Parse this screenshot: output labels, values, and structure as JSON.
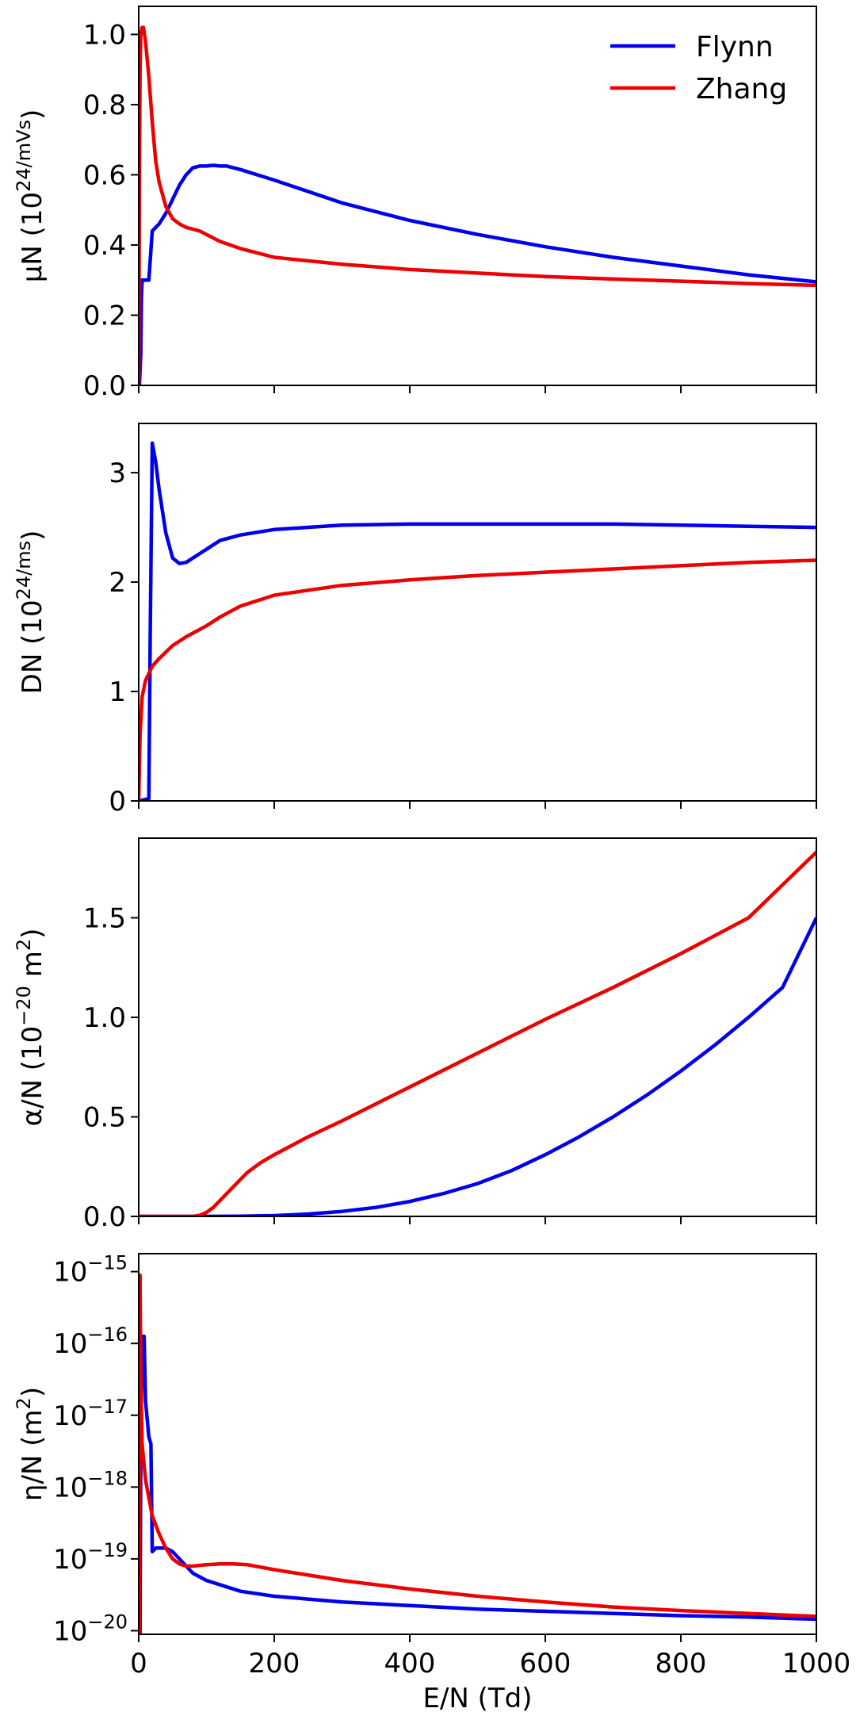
{
  "chart_data": [
    {
      "type": "line",
      "panel": "mobility",
      "ylabel": "μN (10^24/mVs)",
      "xlim": [
        0,
        1000
      ],
      "ylim": [
        0,
        1.08
      ],
      "yticks": [
        "0.0",
        "0.2",
        "0.4",
        "0.6",
        "0.8",
        "1.0"
      ],
      "ytick_values": [
        0,
        0.2,
        0.4,
        0.6,
        0.8,
        1.0
      ],
      "legend": {
        "position": "top-right",
        "entries": [
          "Flynn",
          "Zhang"
        ]
      },
      "series": [
        {
          "name": "Flynn",
          "color": "#0000ee",
          "x": [
            1,
            3,
            4,
            5,
            8,
            10,
            15,
            20,
            25,
            30,
            40,
            50,
            60,
            70,
            80,
            90,
            100,
            110,
            120,
            130,
            150,
            200,
            300,
            400,
            500,
            600,
            700,
            800,
            900,
            1000
          ],
          "y": [
            0.0,
            0.09,
            0.25,
            0.3,
            0.3,
            0.3,
            0.3,
            0.44,
            0.45,
            0.46,
            0.49,
            0.53,
            0.57,
            0.6,
            0.62,
            0.625,
            0.625,
            0.627,
            0.625,
            0.625,
            0.615,
            0.585,
            0.52,
            0.47,
            0.43,
            0.395,
            0.365,
            0.34,
            0.315,
            0.295
          ]
        },
        {
          "name": "Zhang",
          "color": "#ee0000",
          "x": [
            0,
            1,
            2,
            3,
            5,
            7,
            10,
            15,
            20,
            25,
            30,
            40,
            50,
            60,
            70,
            80,
            90,
            100,
            120,
            150,
            200,
            300,
            400,
            500,
            600,
            700,
            800,
            900,
            1000
          ],
          "y": [
            0.0,
            0.6,
            0.9,
            1.0,
            1.02,
            1.02,
            0.98,
            0.88,
            0.75,
            0.64,
            0.58,
            0.51,
            0.475,
            0.46,
            0.45,
            0.445,
            0.44,
            0.43,
            0.41,
            0.39,
            0.365,
            0.345,
            0.33,
            0.32,
            0.31,
            0.303,
            0.297,
            0.29,
            0.285
          ]
        }
      ]
    },
    {
      "type": "line",
      "panel": "diffusion",
      "ylabel": "DN (10^24/ms)",
      "xlim": [
        0,
        1000
      ],
      "ylim": [
        0,
        3.45
      ],
      "yticks": [
        "0",
        "1",
        "2",
        "3"
      ],
      "ytick_values": [
        0,
        1,
        2,
        3
      ],
      "series": [
        {
          "name": "Flynn",
          "color": "#0000ee",
          "x": [
            0,
            15,
            17,
            20,
            25,
            30,
            40,
            50,
            60,
            70,
            80,
            100,
            120,
            150,
            200,
            300,
            400,
            500,
            600,
            700,
            800,
            900,
            1000
          ],
          "y": [
            0.0,
            0.02,
            1.5,
            3.27,
            3.1,
            2.85,
            2.45,
            2.22,
            2.17,
            2.18,
            2.22,
            2.3,
            2.38,
            2.43,
            2.48,
            2.52,
            2.53,
            2.53,
            2.53,
            2.53,
            2.52,
            2.51,
            2.5
          ]
        },
        {
          "name": "Zhang",
          "color": "#ee0000",
          "x": [
            0,
            2,
            5,
            10,
            20,
            30,
            50,
            70,
            100,
            120,
            150,
            200,
            300,
            400,
            500,
            600,
            700,
            800,
            900,
            1000
          ],
          "y": [
            0.0,
            0.6,
            0.95,
            1.1,
            1.23,
            1.3,
            1.42,
            1.5,
            1.6,
            1.68,
            1.78,
            1.88,
            1.97,
            2.02,
            2.06,
            2.09,
            2.12,
            2.15,
            2.18,
            2.2
          ]
        }
      ]
    },
    {
      "type": "line",
      "panel": "ionization",
      "ylabel": "α/N (10^−20 m^2)",
      "xlim": [
        0,
        1000
      ],
      "ylim": [
        0,
        1.9
      ],
      "yticks": [
        "0.0",
        "0.5",
        "1.0",
        "1.5"
      ],
      "ytick_values": [
        0,
        0.5,
        1.0,
        1.5
      ],
      "series": [
        {
          "name": "Flynn",
          "color": "#0000ee",
          "x": [
            0,
            100,
            150,
            200,
            250,
            300,
            350,
            400,
            450,
            500,
            550,
            600,
            650,
            700,
            750,
            800,
            850,
            900,
            950,
            1000
          ],
          "y": [
            0.0,
            0.0,
            0.001,
            0.004,
            0.012,
            0.025,
            0.045,
            0.075,
            0.115,
            0.165,
            0.23,
            0.31,
            0.4,
            0.5,
            0.61,
            0.73,
            0.86,
            1.0,
            1.15,
            1.5
          ]
        },
        {
          "name": "Zhang",
          "color": "#ee0000",
          "x": [
            0,
            80,
            90,
            100,
            110,
            120,
            140,
            160,
            180,
            200,
            250,
            300,
            400,
            500,
            600,
            700,
            800,
            900,
            1000
          ],
          "y": [
            0.0,
            0.0,
            0.005,
            0.02,
            0.045,
            0.08,
            0.15,
            0.22,
            0.27,
            0.31,
            0.4,
            0.48,
            0.65,
            0.82,
            0.99,
            1.15,
            1.32,
            1.5,
            1.83
          ]
        }
      ]
    },
    {
      "type": "line",
      "panel": "attachment",
      "ylabel": "η/N (m^2)",
      "xlabel": "E/N (Td)",
      "xlim": [
        0,
        1000
      ],
      "yscale": "log",
      "ylim_exp": [
        -20.05,
        -14.75
      ],
      "yticks": [
        "10^-20",
        "10^-19",
        "10^-18",
        "10^-17",
        "10^-16",
        "10^-15"
      ],
      "ytick_exponents": [
        -20,
        -19,
        -18,
        -17,
        -16,
        -15
      ],
      "xticks": [
        "0",
        "200",
        "400",
        "600",
        "800",
        "1000"
      ],
      "xtick_values": [
        0,
        200,
        400,
        600,
        800,
        1000
      ],
      "series": [
        {
          "name": "Flynn",
          "color": "#0000ee",
          "x": [
            2,
            3,
            5,
            8,
            10,
            15,
            18,
            20,
            25,
            30,
            40,
            50,
            60,
            80,
            100,
            150,
            200,
            300,
            400,
            500,
            600,
            700,
            800,
            900,
            1000
          ],
          "y_log10": [
            -20.05,
            -17.5,
            -15.9,
            -15.9,
            -16.8,
            -17.3,
            -17.4,
            -18.9,
            -18.85,
            -18.85,
            -18.85,
            -18.9,
            -19.0,
            -19.2,
            -19.3,
            -19.45,
            -19.52,
            -19.6,
            -19.65,
            -19.7,
            -19.73,
            -19.76,
            -19.79,
            -19.81,
            -19.84
          ]
        },
        {
          "name": "Zhang",
          "color": "#ee0000",
          "x": [
            1,
            2,
            3,
            5,
            10,
            20,
            30,
            40,
            50,
            60,
            70,
            80,
            100,
            120,
            140,
            160,
            200,
            300,
            400,
            500,
            600,
            700,
            800,
            900,
            1000
          ],
          "y_log10": [
            -20.05,
            -15.05,
            -16.5,
            -17.4,
            -17.9,
            -18.4,
            -18.65,
            -18.85,
            -19.0,
            -19.07,
            -19.1,
            -19.1,
            -19.08,
            -19.07,
            -19.07,
            -19.08,
            -19.15,
            -19.3,
            -19.42,
            -19.52,
            -19.6,
            -19.67,
            -19.72,
            -19.76,
            -19.8
          ]
        }
      ]
    }
  ]
}
